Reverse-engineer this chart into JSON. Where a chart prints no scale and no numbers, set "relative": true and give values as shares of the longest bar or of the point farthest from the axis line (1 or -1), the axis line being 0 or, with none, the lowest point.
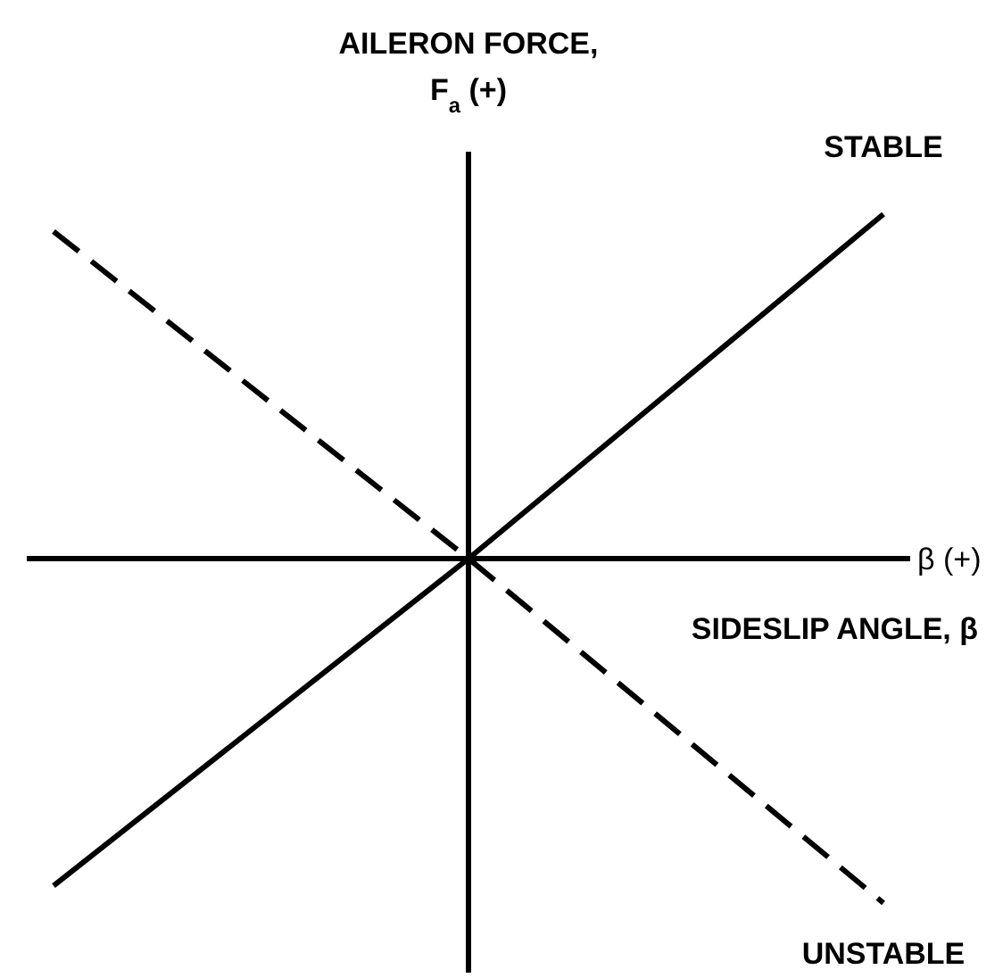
{
  "chart_data": {
    "type": "line",
    "relative": true,
    "categories": [
      null,
      null,
      null
    ],
    "ylabel": "AILERON FORCE, F$_{a}$ (+)",
    "xlabel": "SIDESLIP ANGLE, β",
    "annotations": [
      "β (+)"
    ],
    "series": [
      {
        "name": "STABLE",
        "color": "#000000",
        "values": [
          -0.95,
          0,
          1
        ],
        "line_style": "solid"
      },
      {
        "name": "UNSTABLE",
        "color": "#000000",
        "values": [
          0.95,
          0,
          -1
        ],
        "line_style": "dashed"
      }
    ],
    "legend": false,
    "marker": "none"
  }
}
